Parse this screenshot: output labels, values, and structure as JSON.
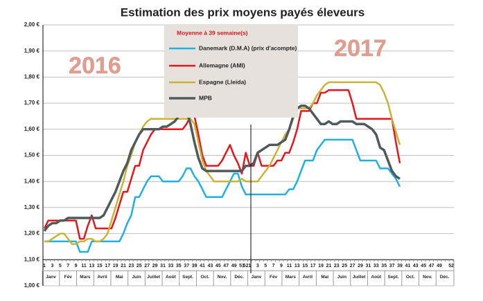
{
  "chart_data": {
    "type": "line",
    "title": "Estimation des prix moyens payés éleveurs",
    "legend_title": "Moyenne à  39 semaine(s)",
    "annotations": [
      "2016",
      "2017"
    ],
    "months": [
      "Janv",
      "Fév",
      "Mars",
      "Avril",
      "Mai",
      "Juin",
      "Juillet",
      "Août",
      "Sept.",
      "Oct.",
      "Nov.",
      "Déc.",
      "Janv",
      "Fév",
      "Mars",
      "Avril",
      "Mai",
      "Juin",
      "Juillet",
      "Août",
      "Sept.",
      "Oct.",
      "Nov.",
      "Déc."
    ],
    "categories": [
      "1",
      null,
      "3",
      null,
      "5",
      null,
      "7",
      null,
      "9",
      null,
      "11",
      null,
      "13",
      null,
      "15",
      null,
      "17",
      null,
      "19",
      null,
      "21",
      null,
      "23",
      null,
      "25",
      null,
      "27",
      null,
      "29",
      null,
      "31",
      null,
      "33",
      null,
      "35",
      null,
      "37",
      null,
      "39",
      null,
      "41",
      null,
      "43",
      null,
      "45",
      null,
      "47",
      null,
      "49",
      null,
      "51",
      "52",
      "1",
      null,
      "3",
      null,
      "5",
      null,
      "7",
      null,
      "9",
      null,
      "11",
      null,
      "13",
      null,
      "15",
      null,
      "17",
      null,
      "19",
      null,
      "21",
      null,
      "23",
      null,
      "25",
      null,
      "27",
      null,
      "29",
      null,
      "31",
      null,
      "33",
      null,
      "35",
      null,
      "37",
      null,
      "39",
      null,
      "41",
      null,
      "43",
      null,
      "45",
      null,
      "47",
      null,
      "49",
      null,
      null,
      "52"
    ],
    "ylim": [
      1.0,
      2.0
    ],
    "yticks": [
      {
        "value": 1.0,
        "label": "1,00 €"
      },
      {
        "value": 1.1,
        "label": "1,10 €"
      },
      {
        "value": 1.2,
        "label": "1,20 €"
      },
      {
        "value": 1.3,
        "label": "1,30 €"
      },
      {
        "value": 1.4,
        "label": "1,40 €"
      },
      {
        "value": 1.5,
        "label": "1,50 €"
      },
      {
        "value": 1.6,
        "label": "1,60 €"
      },
      {
        "value": 1.7,
        "label": "1,70 €"
      },
      {
        "value": 1.8,
        "label": "1,80 €"
      },
      {
        "value": 1.9,
        "label": "1,90 €"
      },
      {
        "value": 2.0,
        "label": "2,00 €"
      }
    ],
    "grid": true,
    "series": [
      {
        "name": "Danemark (D.M.A) (prix d'acompte)",
        "color": "#1eb0e2",
        "values": [
          1.17,
          1.17,
          1.17,
          1.17,
          1.17,
          1.17,
          1.17,
          1.17,
          1.17,
          1.13,
          1.13,
          1.13,
          1.17,
          1.17,
          1.17,
          1.17,
          1.17,
          1.17,
          1.17,
          1.17,
          1.2,
          1.24,
          1.27,
          1.34,
          1.34,
          1.37,
          1.4,
          1.42,
          1.42,
          1.42,
          1.4,
          1.4,
          1.4,
          1.4,
          1.4,
          1.42,
          1.45,
          1.45,
          1.42,
          1.4,
          1.37,
          1.34,
          1.34,
          1.34,
          1.34,
          1.34,
          1.37,
          1.4,
          1.43,
          1.43,
          1.38,
          1.35,
          1.35,
          1.35,
          1.35,
          1.35,
          1.35,
          1.35,
          1.35,
          1.35,
          1.35,
          1.35,
          1.37,
          1.37,
          1.4,
          1.44,
          1.48,
          1.48,
          1.48,
          1.52,
          1.54,
          1.56,
          1.56,
          1.56,
          1.56,
          1.56,
          1.56,
          1.56,
          1.56,
          1.52,
          1.48,
          1.48,
          1.48,
          1.48,
          1.48,
          1.45,
          1.45,
          1.45,
          1.43,
          1.41,
          1.38,
          null,
          null,
          null,
          null,
          null,
          null,
          null,
          null,
          null,
          null,
          null,
          null,
          null
        ]
      },
      {
        "name": "Allemagne (AMI)",
        "color": "#e8141a",
        "values": [
          1.22,
          1.25,
          1.25,
          1.25,
          1.25,
          1.25,
          1.25,
          1.25,
          1.25,
          1.18,
          1.18,
          1.23,
          1.27,
          1.22,
          1.22,
          1.22,
          1.22,
          1.22,
          1.26,
          1.31,
          1.36,
          1.36,
          1.41,
          1.46,
          1.46,
          1.52,
          1.55,
          1.58,
          1.6,
          1.6,
          1.6,
          1.6,
          1.6,
          1.6,
          1.6,
          1.6,
          1.62,
          1.65,
          1.65,
          1.58,
          1.5,
          1.46,
          1.46,
          1.46,
          1.46,
          1.48,
          1.51,
          1.54,
          1.5,
          1.47,
          1.43,
          1.51,
          1.46,
          1.46,
          1.51,
          1.46,
          1.46,
          1.46,
          1.46,
          1.48,
          1.48,
          1.51,
          1.51,
          1.55,
          1.6,
          1.67,
          1.67,
          1.67,
          1.7,
          1.7,
          1.74,
          1.74,
          1.75,
          1.75,
          1.75,
          1.75,
          1.75,
          1.75,
          1.7,
          1.64,
          1.64,
          1.64,
          1.64,
          1.64,
          1.64,
          1.64,
          1.64,
          1.64,
          1.64,
          1.55,
          1.47,
          null,
          null,
          null,
          null,
          null,
          null,
          null,
          null,
          null,
          null,
          null,
          null,
          null
        ]
      },
      {
        "name": "Espagne (Lleida)",
        "color": "#c9b334",
        "values": [
          1.17,
          1.17,
          1.18,
          1.19,
          1.2,
          1.2,
          1.18,
          1.16,
          1.16,
          1.17,
          1.17,
          1.18,
          1.18,
          1.17,
          1.17,
          1.18,
          1.2,
          1.25,
          1.3,
          1.35,
          1.4,
          1.46,
          1.5,
          1.55,
          1.58,
          1.61,
          1.63,
          1.64,
          1.64,
          1.64,
          1.64,
          1.64,
          1.64,
          1.64,
          1.64,
          1.64,
          1.64,
          1.64,
          1.62,
          1.55,
          1.48,
          1.44,
          1.42,
          1.4,
          1.4,
          1.4,
          1.4,
          1.4,
          1.4,
          1.4,
          1.41,
          1.4,
          1.4,
          1.4,
          1.4,
          1.42,
          1.44,
          1.46,
          1.49,
          1.52,
          1.55,
          1.58,
          1.6,
          1.64,
          1.68,
          1.68,
          1.68,
          1.68,
          1.7,
          1.73,
          1.75,
          1.77,
          1.78,
          1.78,
          1.78,
          1.78,
          1.78,
          1.78,
          1.78,
          1.78,
          1.78,
          1.78,
          1.78,
          1.78,
          1.78,
          1.77,
          1.74,
          1.7,
          1.64,
          1.59,
          1.54,
          null,
          null,
          null,
          null,
          null,
          null,
          null,
          null,
          null,
          null,
          null,
          null,
          null
        ]
      },
      {
        "name": "MPB",
        "color": "#4f5a5a",
        "values": [
          1.21,
          1.23,
          1.24,
          1.24,
          1.25,
          1.25,
          1.26,
          1.26,
          1.26,
          1.26,
          1.26,
          1.26,
          1.26,
          1.26,
          1.26,
          1.27,
          1.3,
          1.33,
          1.36,
          1.4,
          1.44,
          1.47,
          1.52,
          1.55,
          1.58,
          1.6,
          1.6,
          1.6,
          1.6,
          1.6,
          1.61,
          1.61,
          1.62,
          1.63,
          1.65,
          1.67,
          1.67,
          1.62,
          1.55,
          1.49,
          1.45,
          1.44,
          1.44,
          1.44,
          1.44,
          1.44,
          1.44,
          1.44,
          1.44,
          1.44,
          1.44,
          1.46,
          1.46,
          1.47,
          1.51,
          1.52,
          1.53,
          1.54,
          1.54,
          1.54,
          1.55,
          1.56,
          1.6,
          1.65,
          1.68,
          1.69,
          1.69,
          1.68,
          1.66,
          1.64,
          1.62,
          1.62,
          1.63,
          1.62,
          1.62,
          1.63,
          1.63,
          1.63,
          1.63,
          1.62,
          1.62,
          1.62,
          1.61,
          1.6,
          1.58,
          1.53,
          1.52,
          1.48,
          1.44,
          1.42,
          1.41,
          null,
          null,
          null,
          null,
          null,
          null,
          null,
          null,
          null,
          null,
          null,
          null,
          null
        ]
      }
    ]
  }
}
